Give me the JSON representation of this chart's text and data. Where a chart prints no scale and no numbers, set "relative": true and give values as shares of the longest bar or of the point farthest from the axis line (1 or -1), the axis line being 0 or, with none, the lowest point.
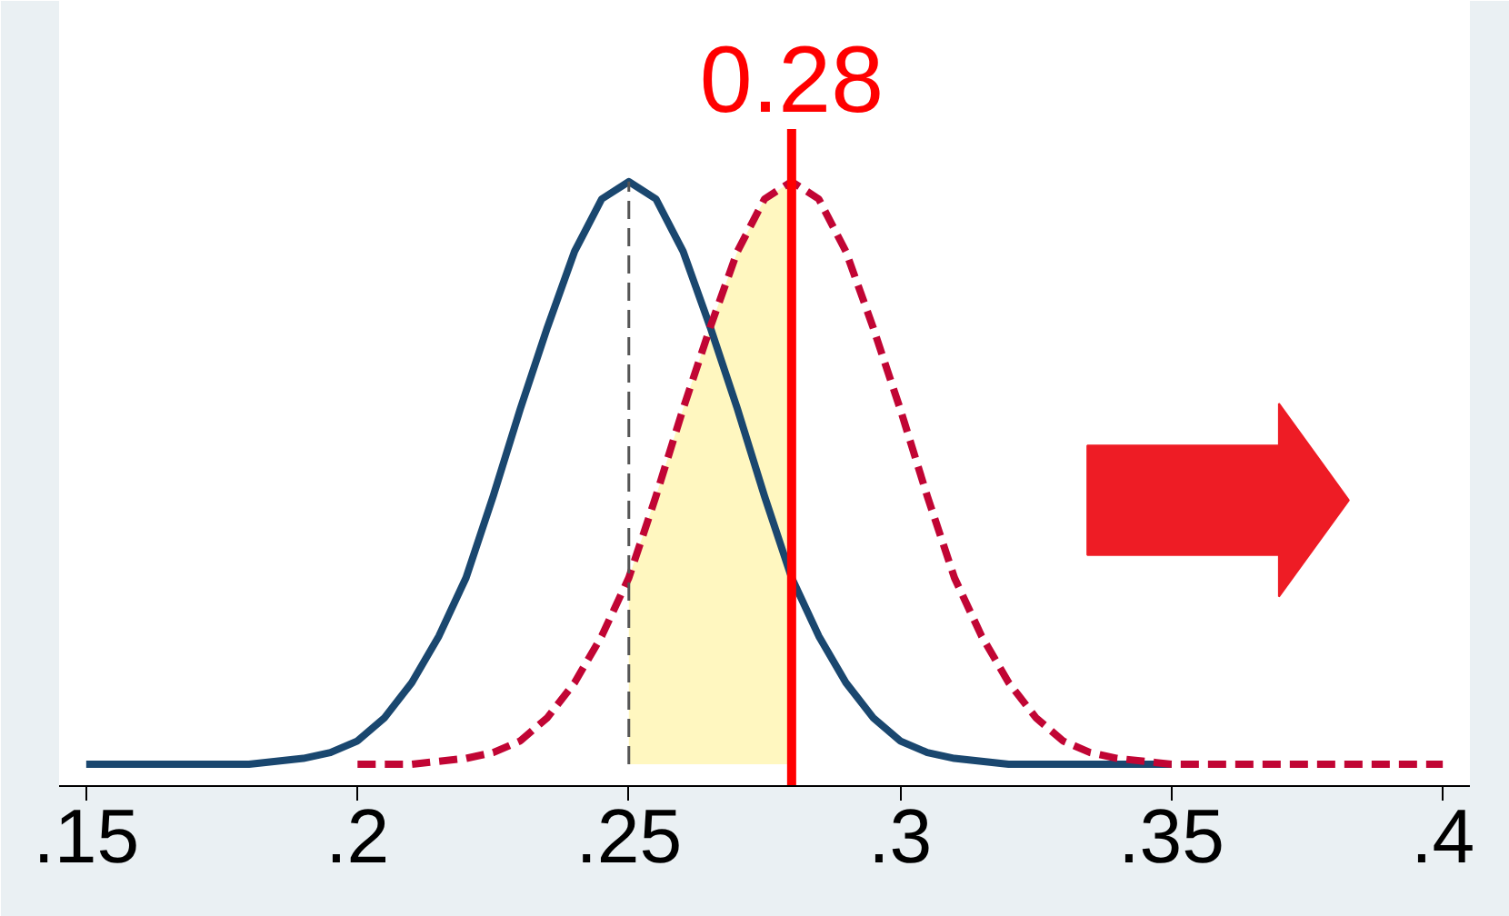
{
  "chart_data": {
    "type": "line",
    "relative": true,
    "xlim": [
      0.145,
      0.405
    ],
    "xticks": [
      {
        "value": 0.15,
        "label": ".15"
      },
      {
        "value": 0.2,
        "label": ".2"
      },
      {
        "value": 0.25,
        "label": ".25"
      },
      {
        "value": 0.3,
        "label": ".3"
      },
      {
        "value": 0.35,
        "label": ".35"
      },
      {
        "value": 0.4,
        "label": ".4"
      }
    ],
    "series": [
      {
        "type": "area",
        "color": "#fff7c0",
        "x": [
          0.25,
          0.255,
          0.26,
          0.265,
          0.27,
          0.275,
          0.28
        ],
        "values": [
          0.32,
          0.46,
          0.61,
          0.75,
          0.88,
          0.97,
          1
        ]
      },
      {
        "color": "#1a476f",
        "line_style": "solid",
        "x": [
          0.15,
          0.18,
          0.19,
          0.195,
          0.2,
          0.205,
          0.21,
          0.215,
          0.22,
          0.225,
          0.23,
          0.235,
          0.24,
          0.245,
          0.25,
          0.255,
          0.26,
          0.265,
          0.27,
          0.275,
          0.28,
          0.285,
          0.29,
          0.295,
          0.3,
          0.305,
          0.31,
          0.32,
          0.35
        ],
        "values": [
          0,
          0,
          0.01,
          0.02,
          0.04,
          0.08,
          0.14,
          0.22,
          0.32,
          0.46,
          0.61,
          0.75,
          0.88,
          0.97,
          1,
          0.97,
          0.88,
          0.75,
          0.61,
          0.46,
          0.32,
          0.22,
          0.14,
          0.08,
          0.04,
          0.02,
          0.01,
          0,
          0
        ]
      },
      {
        "color": "#c10534",
        "line_style": "dashed",
        "x": [
          0.2,
          0.21,
          0.22,
          0.225,
          0.23,
          0.235,
          0.24,
          0.245,
          0.25,
          0.255,
          0.26,
          0.265,
          0.27,
          0.275,
          0.28,
          0.285,
          0.29,
          0.295,
          0.3,
          0.305,
          0.31,
          0.315,
          0.32,
          0.325,
          0.33,
          0.335,
          0.34,
          0.35,
          0.4
        ],
        "values": [
          0,
          0,
          0.01,
          0.02,
          0.04,
          0.08,
          0.14,
          0.22,
          0.32,
          0.46,
          0.61,
          0.75,
          0.88,
          0.97,
          1,
          0.97,
          0.88,
          0.75,
          0.61,
          0.46,
          0.32,
          0.22,
          0.14,
          0.08,
          0.04,
          0.02,
          0.01,
          0,
          0
        ]
      }
    ],
    "ref_lines": [
      {
        "axis": "x",
        "value": 0.25,
        "color": "#555555",
        "line_style": "dashed"
      },
      {
        "axis": "x",
        "value": 0.28,
        "label": "0.28",
        "color": "#ff0000",
        "line_style": "solid"
      }
    ]
  }
}
